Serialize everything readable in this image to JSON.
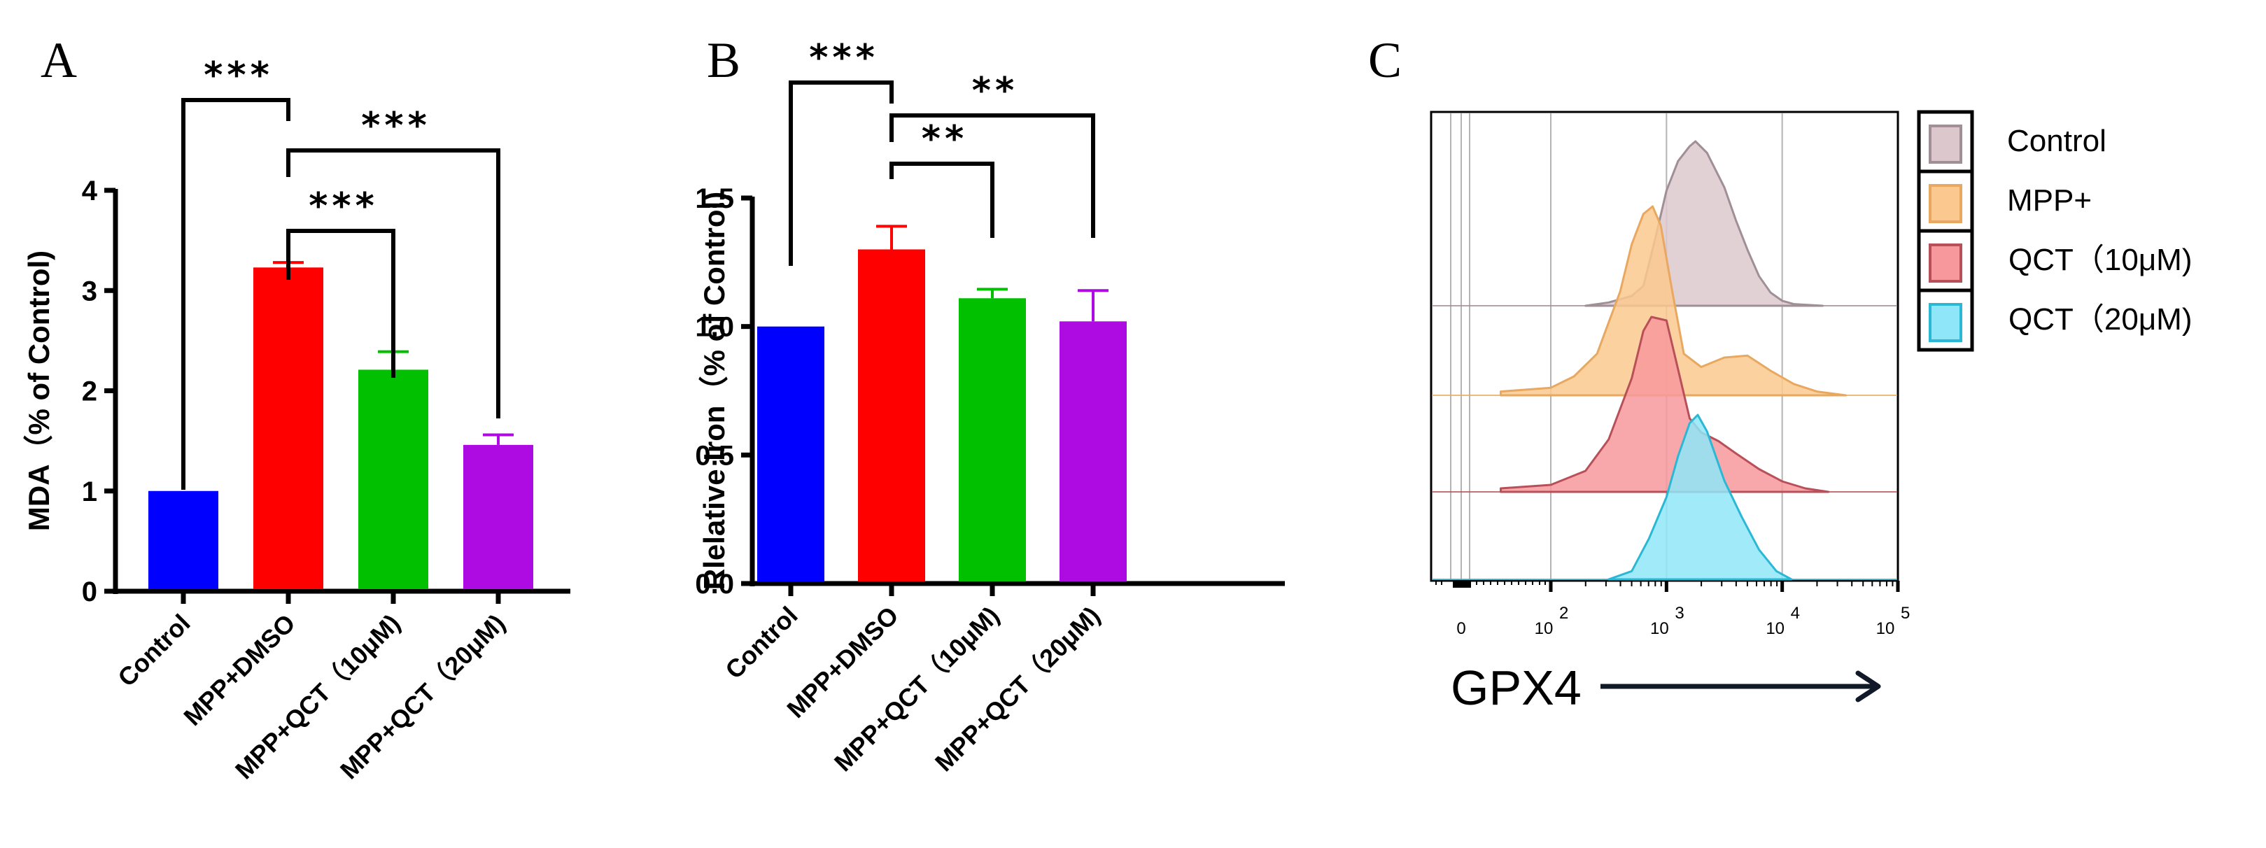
{
  "chart_data": [
    {
      "panel": "A",
      "type": "bar",
      "title": "",
      "xlabel": "",
      "ylabel": "MDA（% of Control)",
      "ylim": [
        0,
        4
      ],
      "yticks": [
        0,
        1,
        2,
        3,
        4
      ],
      "categories": [
        "Control",
        "MPP+DMSO",
        "MPP+QCT（10μM)",
        "MPP+QCT（20μM)"
      ],
      "values": [
        1.0,
        3.23,
        2.21,
        1.46
      ],
      "errors": [
        0.0,
        0.05,
        0.18,
        0.1
      ],
      "colors": [
        "#0000ff",
        "#ff0000",
        "#00c000",
        "#ae0ae2"
      ],
      "significance": [
        {
          "from": 0,
          "to": 1,
          "label": "***"
        },
        {
          "from": 1,
          "to": 2,
          "label": "***"
        },
        {
          "from": 1,
          "to": 3,
          "label": "***"
        }
      ]
    },
    {
      "panel": "B",
      "type": "bar",
      "title": "",
      "xlabel": "",
      "ylabel": "Rlelative Iron（% of Control)",
      "ylim": [
        0,
        1.5
      ],
      "yticks": [
        "0.0",
        "0.5",
        "1.0",
        "1.5"
      ],
      "categories": [
        "Control",
        "MPP+DMSO",
        "MPP+QCT（10μM)",
        "MPP+QCT（20μM)"
      ],
      "values": [
        1.0,
        1.3,
        1.11,
        1.02
      ],
      "errors": [
        0.0,
        0.09,
        0.035,
        0.12
      ],
      "colors": [
        "#0000ff",
        "#ff0000",
        "#00c000",
        "#ae0ae2"
      ],
      "significance": [
        {
          "from": 0,
          "to": 1,
          "label": "***"
        },
        {
          "from": 1,
          "to": 2,
          "label": "**"
        },
        {
          "from": 1,
          "to": 3,
          "label": "**"
        }
      ]
    },
    {
      "panel": "C",
      "type": "area",
      "title": "",
      "xlabel": "GPX4",
      "ylabel": "",
      "xscale": "biexponential",
      "xticks": [
        {
          "base": "0",
          "exp": ""
        },
        {
          "base": "10",
          "exp": "2"
        },
        {
          "base": "10",
          "exp": "3"
        },
        {
          "base": "10",
          "exp": "4"
        },
        {
          "base": "10",
          "exp": "5"
        }
      ],
      "legend_position": "right",
      "series": [
        {
          "name": "Control",
          "fill": "#dcc8cc",
          "stroke": "#a08f96",
          "peak_log10": 3.25,
          "profile_log10": [
            2.3,
            2.5,
            2.7,
            2.8,
            2.9,
            3.0,
            3.1,
            3.2,
            3.25,
            3.35,
            3.5,
            3.6,
            3.7,
            3.8,
            3.9,
            4.0,
            4.1,
            4.35
          ],
          "profile_rel": [
            0.0,
            0.02,
            0.06,
            0.12,
            0.4,
            0.7,
            0.88,
            0.97,
            1.0,
            0.93,
            0.72,
            0.52,
            0.34,
            0.18,
            0.08,
            0.03,
            0.01,
            0.0
          ]
        },
        {
          "name": "MPP+",
          "fill": "#fbc98f",
          "stroke": "#e8a860",
          "peak_log10": 2.9,
          "profile_log10": [
            1.0,
            2.0,
            2.2,
            2.4,
            2.6,
            2.7,
            2.8,
            2.88,
            2.95,
            3.05,
            3.15,
            3.3,
            3.5,
            3.7,
            3.9,
            4.1,
            4.3,
            4.55
          ],
          "profile_rel": [
            0.02,
            0.04,
            0.1,
            0.22,
            0.55,
            0.8,
            0.96,
            1.0,
            0.9,
            0.55,
            0.22,
            0.15,
            0.2,
            0.21,
            0.13,
            0.06,
            0.02,
            0.0
          ]
        },
        {
          "name": "QCT（10μM)",
          "fill": "#f7999c",
          "stroke": "#b8505a",
          "peak_log10": 2.95,
          "profile_log10": [
            1.0,
            2.0,
            2.3,
            2.5,
            2.7,
            2.8,
            2.87,
            3.0,
            3.1,
            3.2,
            3.3,
            3.45,
            3.6,
            3.8,
            4.0,
            4.2,
            4.4
          ],
          "profile_rel": [
            0.02,
            0.04,
            0.12,
            0.3,
            0.65,
            0.92,
            1.0,
            0.98,
            0.7,
            0.42,
            0.34,
            0.29,
            0.22,
            0.13,
            0.06,
            0.02,
            0.0
          ]
        },
        {
          "name": "QCT（20μM)",
          "fill": "#8fe6f8",
          "stroke": "#2ab8d4",
          "peak_log10": 3.25,
          "profile_log10": [
            2.5,
            2.7,
            2.85,
            3.0,
            3.1,
            3.2,
            3.27,
            3.35,
            3.5,
            3.65,
            3.8,
            3.95,
            4.08
          ],
          "profile_rel": [
            0.0,
            0.05,
            0.25,
            0.5,
            0.75,
            0.95,
            1.0,
            0.9,
            0.6,
            0.38,
            0.18,
            0.05,
            0.0
          ]
        }
      ]
    }
  ],
  "panels": {
    "a_letter": "A",
    "b_letter": "B",
    "c_letter": "C"
  }
}
